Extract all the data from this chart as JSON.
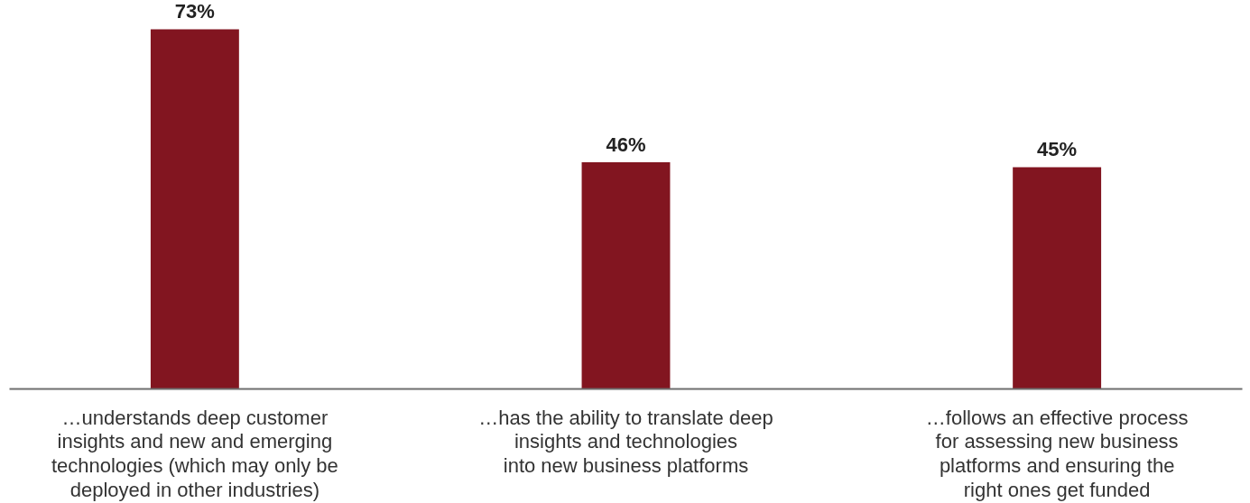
{
  "chart_data": {
    "type": "bar",
    "categories": [
      "…understands deep customer\ninsights and new and emerging\ntechnologies (which may only be\ndeployed in other industries)",
      "…has the ability to translate deep\ninsights and technologies\ninto new business platforms",
      "…follows an effective process\nfor assessing new business\nplatforms and ensuring the\nright ones get funded"
    ],
    "values": [
      73,
      46,
      45
    ],
    "color": "#821520",
    "value_labels": [
      "73%",
      "46%",
      "45%"
    ],
    "grid": false
  }
}
